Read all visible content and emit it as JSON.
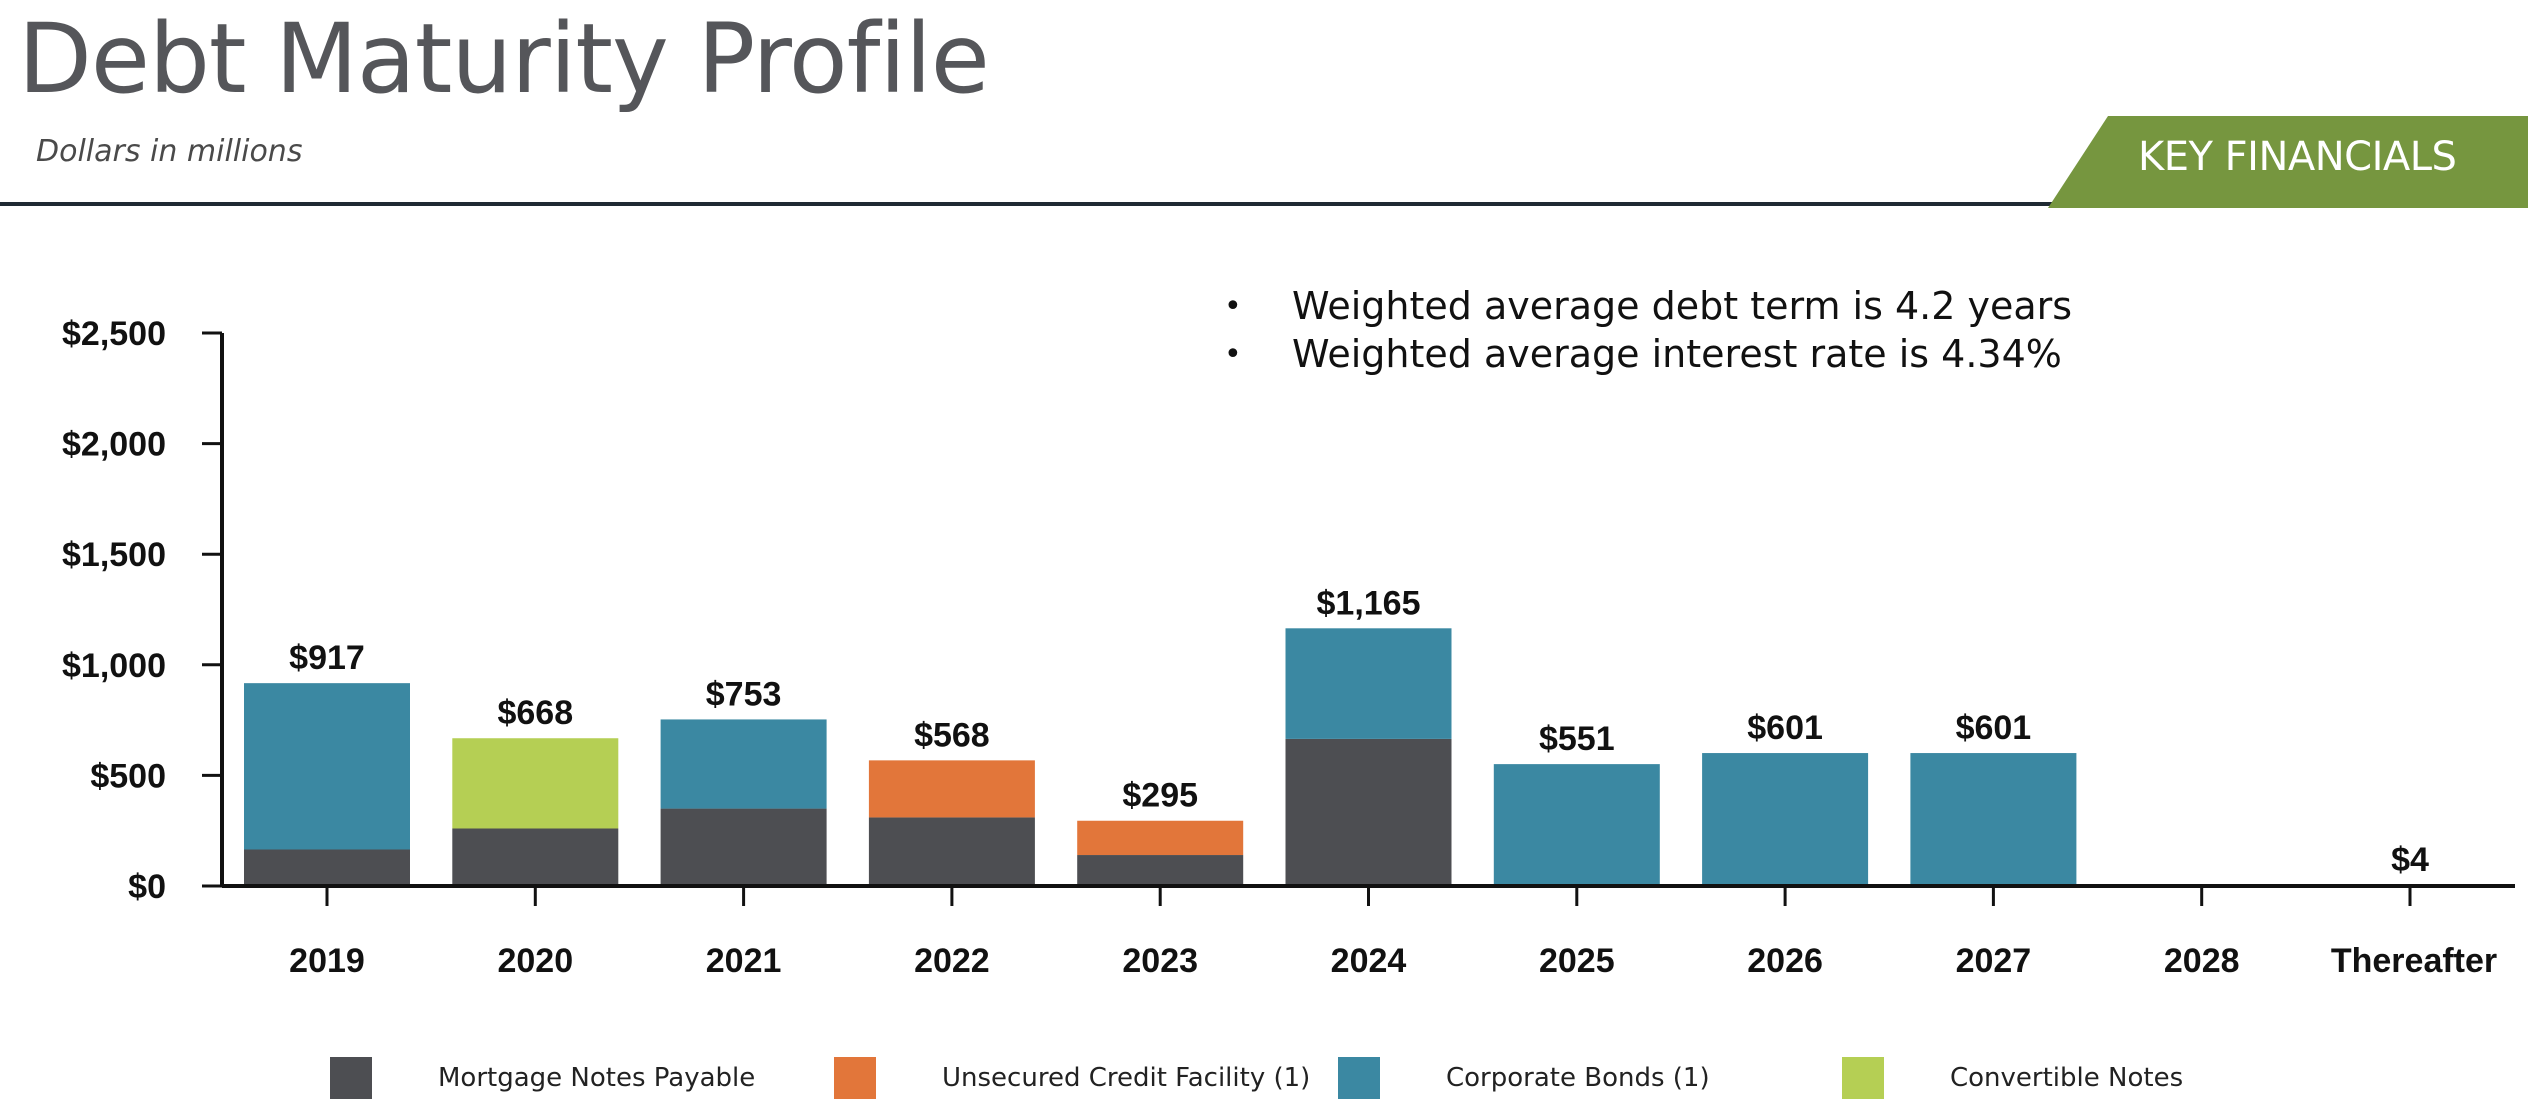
{
  "header": {
    "title": "Debt Maturity Profile",
    "subtitle": "Dollars in millions",
    "badge": "KEY FINANCIALS"
  },
  "notes": [
    "Weighted average debt term is 4.2 years",
    "Weighted average interest rate is 4.34%"
  ],
  "colors": {
    "mortgage": "#4d4e52",
    "unsecured": "#e2763a",
    "corporate": "#3b88a2",
    "convertible": "#b5cf54",
    "badge": "#76963f",
    "axis": "#111111"
  },
  "chart_data": {
    "type": "bar",
    "stacked": true,
    "categories": [
      "2019",
      "2020",
      "2021",
      "2022",
      "2023",
      "2024",
      "2025",
      "2026",
      "2027",
      "2028",
      "Thereafter"
    ],
    "series": [
      {
        "name": "Mortgage Notes Payable",
        "color_key": "mortgage",
        "values": [
          165,
          260,
          350,
          310,
          140,
          665,
          0,
          0,
          0,
          0,
          4
        ]
      },
      {
        "name": "Unsecured Credit Facility (1)",
        "color_key": "unsecured",
        "values": [
          0,
          0,
          0,
          258,
          155,
          0,
          0,
          0,
          0,
          0,
          0
        ]
      },
      {
        "name": "Corporate Bonds (1)",
        "color_key": "corporate",
        "values": [
          752,
          0,
          403,
          0,
          0,
          500,
          551,
          601,
          601,
          0,
          0
        ]
      },
      {
        "name": "Convertible Notes",
        "color_key": "convertible",
        "values": [
          0,
          408,
          0,
          0,
          0,
          0,
          0,
          0,
          0,
          0,
          0
        ]
      }
    ],
    "totals": [
      "$917",
      "$668",
      "$753",
      "$568",
      "$295",
      "$1,165",
      "$551",
      "$601",
      "$601",
      "",
      "$4"
    ],
    "yticks": [
      0,
      500,
      1000,
      1500,
      2000,
      2500
    ],
    "ytick_labels": [
      "$0",
      "$500",
      "$1,000",
      "$1,500",
      "$2,000",
      "$2,500"
    ],
    "ylim": [
      0,
      2500
    ],
    "legend_position": "bottom",
    "grid": false
  }
}
